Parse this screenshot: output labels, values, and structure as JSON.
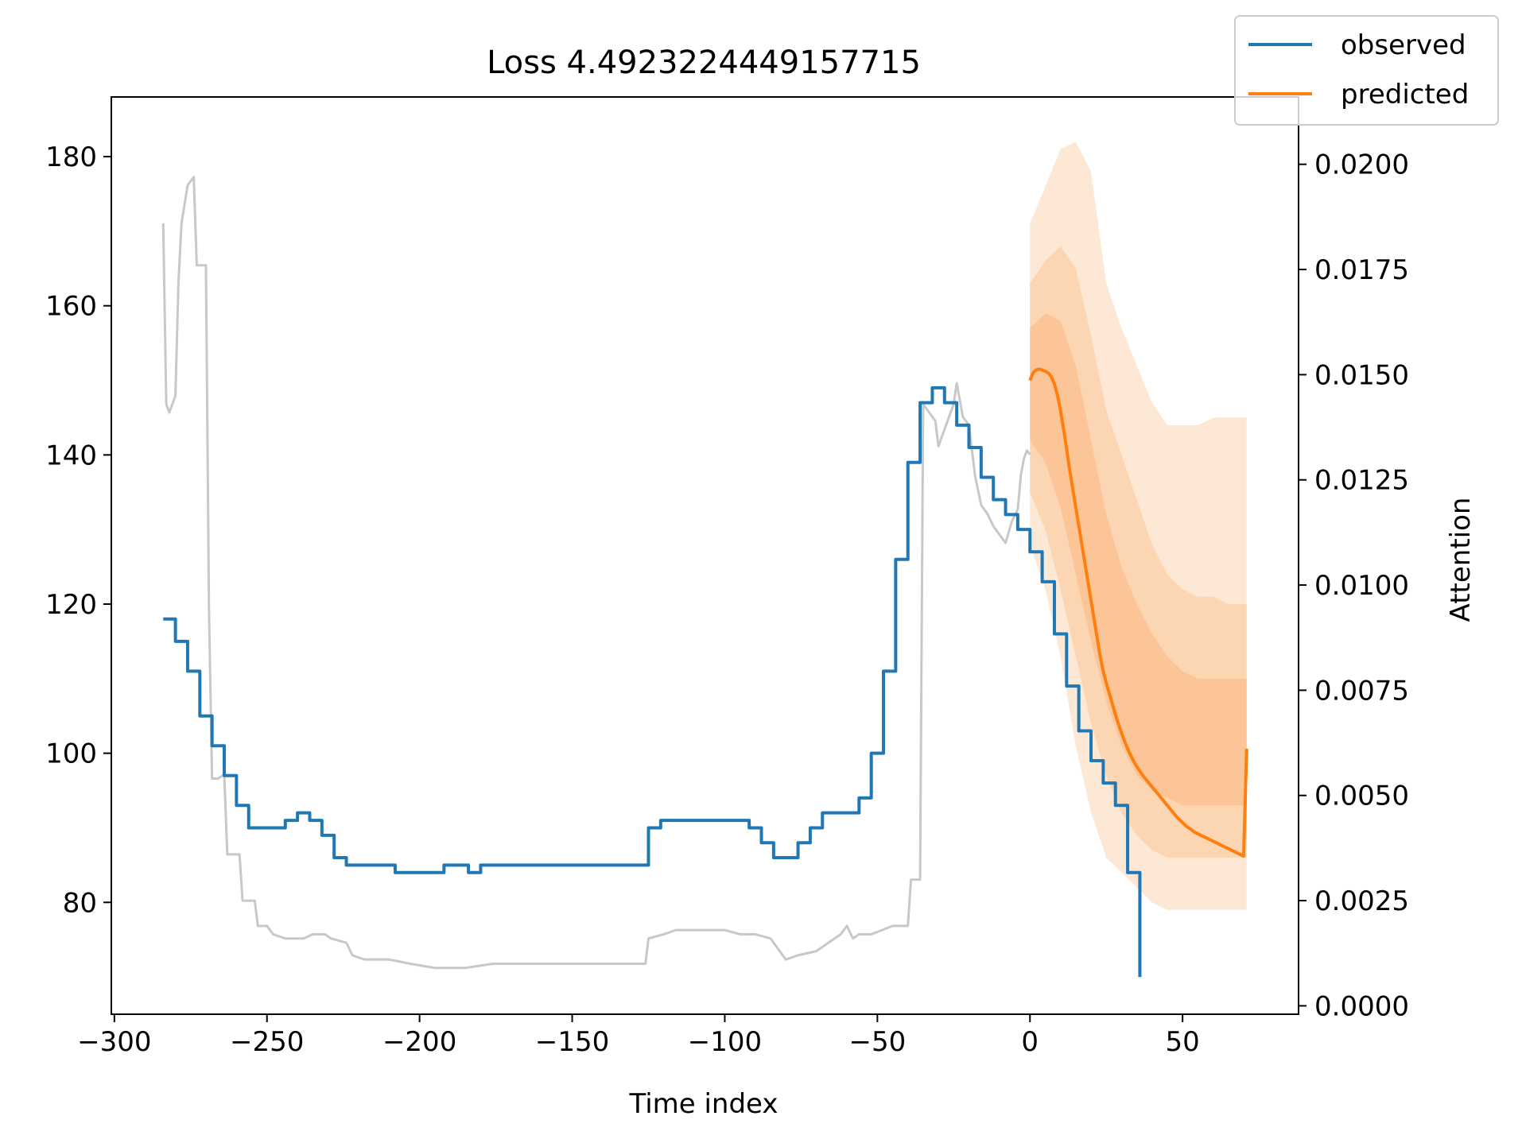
{
  "chart_data": {
    "type": "line",
    "title": "Loss 4.4923224449157715",
    "xlabel": "Time index",
    "ylabel": "",
    "y2label": "Attention",
    "xlim": [
      -301,
      88
    ],
    "ylim": [
      65,
      188
    ],
    "y2lim": [
      -0.0002,
      0.0216
    ],
    "xticks": [
      -300,
      -250,
      -200,
      -150,
      -100,
      -50,
      0,
      50
    ],
    "xtick_labels": [
      "−300",
      "−250",
      "−200",
      "−150",
      "−100",
      "−50",
      "0",
      "50"
    ],
    "yticks": [
      80,
      100,
      120,
      140,
      160,
      180
    ],
    "ytick_labels": [
      "80",
      "100",
      "120",
      "140",
      "160",
      "180"
    ],
    "y2ticks": [
      0,
      0.0025,
      0.005,
      0.0075,
      0.01,
      0.0125,
      0.015,
      0.0175,
      0.02
    ],
    "y2tick_labels": [
      "0.0000",
      "0.0025",
      "0.0050",
      "0.0075",
      "0.0100",
      "0.0125",
      "0.0150",
      "0.0175",
      "0.0200"
    ],
    "legend": {
      "placement": "top-right",
      "entries": [
        "observed",
        "predicted"
      ]
    },
    "colors": {
      "observed": "#1f77b4",
      "predicted": "#ff7f0e",
      "attention": "#c8c8c8",
      "band_outer": "#fde8d6",
      "band_middle": "#fcd6b3",
      "band_inner": "#fbc598"
    },
    "series": [
      {
        "name": "observed",
        "axis": "left",
        "step": true,
        "points": [
          [
            -284,
            118
          ],
          [
            -280,
            118
          ],
          [
            -280,
            115
          ],
          [
            -276,
            115
          ],
          [
            -276,
            111
          ],
          [
            -272,
            111
          ],
          [
            -272,
            105
          ],
          [
            -268,
            105
          ],
          [
            -268,
            101
          ],
          [
            -264,
            101
          ],
          [
            -264,
            97
          ],
          [
            -260,
            97
          ],
          [
            -260,
            93
          ],
          [
            -256,
            93
          ],
          [
            -256,
            90
          ],
          [
            -244,
            90
          ],
          [
            -244,
            91
          ],
          [
            -240,
            91
          ],
          [
            -240,
            92
          ],
          [
            -236,
            92
          ],
          [
            -236,
            91
          ],
          [
            -232,
            91
          ],
          [
            -232,
            89
          ],
          [
            -228,
            89
          ],
          [
            -228,
            86
          ],
          [
            -224,
            86
          ],
          [
            -224,
            85
          ],
          [
            -208,
            85
          ],
          [
            -208,
            84
          ],
          [
            -192,
            84
          ],
          [
            -192,
            85
          ],
          [
            -184,
            85
          ],
          [
            -184,
            84
          ],
          [
            -180,
            84
          ],
          [
            -180,
            85
          ],
          [
            -125,
            85
          ],
          [
            -125,
            90
          ],
          [
            -121,
            90
          ],
          [
            -121,
            91
          ],
          [
            -92,
            91
          ],
          [
            -92,
            90
          ],
          [
            -88,
            90
          ],
          [
            -88,
            88
          ],
          [
            -84,
            88
          ],
          [
            -84,
            86
          ],
          [
            -76,
            86
          ],
          [
            -76,
            88
          ],
          [
            -72,
            88
          ],
          [
            -72,
            90
          ],
          [
            -68,
            90
          ],
          [
            -68,
            92
          ],
          [
            -56,
            92
          ],
          [
            -56,
            94
          ],
          [
            -52,
            94
          ],
          [
            -52,
            100
          ],
          [
            -48,
            100
          ],
          [
            -48,
            111
          ],
          [
            -44,
            111
          ],
          [
            -44,
            126
          ],
          [
            -40,
            126
          ],
          [
            -40,
            139
          ],
          [
            -36,
            139
          ],
          [
            -36,
            147
          ],
          [
            -32,
            147
          ],
          [
            -32,
            149
          ],
          [
            -28,
            149
          ],
          [
            -28,
            147
          ],
          [
            -24,
            147
          ],
          [
            -24,
            144
          ],
          [
            -20,
            144
          ],
          [
            -20,
            141
          ],
          [
            -16,
            141
          ],
          [
            -16,
            137
          ],
          [
            -12,
            137
          ],
          [
            -12,
            134
          ],
          [
            -8,
            134
          ],
          [
            -8,
            132
          ],
          [
            -4,
            132
          ],
          [
            -4,
            130
          ],
          [
            0,
            130
          ],
          [
            0,
            127
          ],
          [
            4,
            127
          ],
          [
            4,
            123
          ],
          [
            8,
            123
          ],
          [
            8,
            116
          ],
          [
            12,
            116
          ],
          [
            12,
            109
          ],
          [
            16,
            109
          ],
          [
            16,
            103
          ],
          [
            20,
            103
          ],
          [
            20,
            99
          ],
          [
            24,
            99
          ],
          [
            24,
            96
          ],
          [
            28,
            96
          ],
          [
            28,
            93
          ],
          [
            32,
            93
          ],
          [
            32,
            84
          ],
          [
            36,
            84
          ],
          [
            36,
            70
          ]
        ]
      },
      {
        "name": "predicted",
        "axis": "left",
        "x": [
          0,
          1,
          2,
          3,
          4,
          5,
          6,
          7,
          8,
          9,
          10,
          11,
          12,
          13,
          14,
          15,
          16,
          17,
          18,
          19,
          20,
          21,
          22,
          23,
          24,
          25,
          26,
          27,
          28,
          29,
          30,
          31,
          32,
          33,
          34,
          35,
          36,
          37,
          38,
          39,
          40,
          41,
          42,
          43,
          44,
          45,
          46,
          47,
          48,
          49,
          50,
          51,
          52,
          53,
          54,
          55,
          56,
          57,
          58,
          59,
          60,
          61,
          62,
          63,
          64,
          65,
          66,
          67,
          68,
          69,
          70,
          71
        ],
        "values": [
          150.0,
          151.0,
          151.4,
          151.5,
          151.4,
          151.2,
          151.0,
          150.5,
          149.5,
          148.0,
          146.0,
          143.5,
          140.8,
          138.0,
          135.5,
          133.0,
          130.5,
          128.0,
          125.5,
          123.0,
          120.5,
          118.0,
          115.5,
          113.0,
          111.0,
          109.4,
          108.0,
          106.6,
          105.2,
          103.9,
          102.7,
          101.6,
          100.6,
          99.7,
          98.9,
          98.2,
          97.6,
          97.0,
          96.5,
          96.0,
          95.5,
          95.0,
          94.5,
          94.0,
          93.5,
          93.0,
          92.5,
          92.0,
          91.5,
          91.1,
          90.7,
          90.3,
          90.0,
          89.7,
          89.4,
          89.2,
          89.0,
          88.8,
          88.6,
          88.4,
          88.2,
          88.0,
          87.8,
          87.6,
          87.4,
          87.2,
          87.0,
          86.8,
          86.6,
          86.4,
          86.2,
          100.6
        ]
      },
      {
        "name": "attention",
        "axis": "right",
        "points": [
          [
            -284,
            0.0186
          ],
          [
            -283,
            0.0143
          ],
          [
            -282,
            0.0141
          ],
          [
            -280,
            0.0145
          ],
          [
            -279,
            0.0172
          ],
          [
            -278,
            0.0186
          ],
          [
            -276,
            0.0195
          ],
          [
            -274,
            0.0197
          ],
          [
            -273,
            0.0176
          ],
          [
            -270,
            0.0176
          ],
          [
            -269,
            0.0094
          ],
          [
            -268,
            0.0054
          ],
          [
            -266,
            0.0054
          ],
          [
            -264,
            0.0055
          ],
          [
            -263,
            0.0036
          ],
          [
            -259,
            0.0036
          ],
          [
            -258,
            0.0025
          ],
          [
            -254,
            0.0025
          ],
          [
            -253,
            0.0019
          ],
          [
            -250,
            0.0019
          ],
          [
            -248,
            0.0017
          ],
          [
            -244,
            0.0016
          ],
          [
            -238,
            0.0016
          ],
          [
            -235,
            0.0017
          ],
          [
            -231,
            0.0017
          ],
          [
            -229,
            0.0016
          ],
          [
            -224,
            0.0015
          ],
          [
            -222,
            0.0012
          ],
          [
            -218,
            0.0011
          ],
          [
            -210,
            0.0011
          ],
          [
            -203,
            0.001
          ],
          [
            -195,
            0.0009
          ],
          [
            -185,
            0.0009
          ],
          [
            -176,
            0.001
          ],
          [
            -172,
            0.001
          ],
          [
            -168,
            0.001
          ],
          [
            -160,
            0.001
          ],
          [
            -150,
            0.001
          ],
          [
            -140,
            0.001
          ],
          [
            -126,
            0.001
          ],
          [
            -125,
            0.0016
          ],
          [
            -120,
            0.0017
          ],
          [
            -116,
            0.0018
          ],
          [
            -110,
            0.0018
          ],
          [
            -100,
            0.0018
          ],
          [
            -95,
            0.0017
          ],
          [
            -90,
            0.0017
          ],
          [
            -85,
            0.0016
          ],
          [
            -80,
            0.0011
          ],
          [
            -76,
            0.0012
          ],
          [
            -70,
            0.0013
          ],
          [
            -66,
            0.0015
          ],
          [
            -62,
            0.0017
          ],
          [
            -60,
            0.0019
          ],
          [
            -58,
            0.0016
          ],
          [
            -56,
            0.0017
          ],
          [
            -52,
            0.0017
          ],
          [
            -45,
            0.0019
          ],
          [
            -40,
            0.0019
          ],
          [
            -39,
            0.003
          ],
          [
            -36,
            0.003
          ],
          [
            -35,
            0.0143
          ],
          [
            -33,
            0.0141
          ],
          [
            -31,
            0.0139
          ],
          [
            -30,
            0.0133
          ],
          [
            -29,
            0.0135
          ],
          [
            -27,
            0.0139
          ],
          [
            -25,
            0.0143
          ],
          [
            -24,
            0.0148
          ],
          [
            -22,
            0.014
          ],
          [
            -20,
            0.0138
          ],
          [
            -18,
            0.0126
          ],
          [
            -16,
            0.0119
          ],
          [
            -14,
            0.0117
          ],
          [
            -12,
            0.0114
          ],
          [
            -10,
            0.0112
          ],
          [
            -8,
            0.011
          ],
          [
            -6,
            0.0115
          ],
          [
            -4,
            0.0118
          ],
          [
            -3,
            0.0126
          ],
          [
            -2,
            0.013
          ],
          [
            -1,
            0.0132
          ],
          [
            0,
            0.0131
          ]
        ]
      }
    ],
    "bands": [
      {
        "level": "outer",
        "x": [
          0,
          5,
          10,
          15,
          20,
          25,
          30,
          35,
          40,
          45,
          50,
          55,
          60,
          65,
          71
        ],
        "upper": [
          171,
          176,
          181,
          182,
          178,
          163,
          157,
          152,
          147,
          144,
          144,
          144,
          145,
          145,
          145
        ],
        "lower": [
          128,
          122,
          113,
          101,
          92,
          86,
          84,
          82,
          80,
          79,
          79,
          79,
          79,
          79,
          79
        ]
      },
      {
        "level": "middle",
        "x": [
          0,
          5,
          10,
          15,
          20,
          25,
          30,
          35,
          40,
          45,
          50,
          55,
          60,
          65,
          71
        ],
        "upper": [
          163,
          166,
          168,
          165,
          156,
          146,
          140,
          134,
          128,
          124,
          122,
          121,
          121,
          120,
          120
        ],
        "lower": [
          135,
          130,
          122,
          113,
          104,
          97,
          92,
          89,
          87,
          86,
          86,
          86,
          86,
          86,
          86
        ]
      },
      {
        "level": "inner",
        "x": [
          0,
          5,
          10,
          15,
          20,
          25,
          30,
          35,
          40,
          45,
          50,
          55,
          60,
          65,
          71
        ],
        "upper": [
          157,
          159,
          158,
          152,
          142,
          132,
          125,
          120,
          116,
          113,
          111,
          110,
          110,
          110,
          110
        ],
        "lower": [
          142,
          139,
          133,
          124,
          115,
          107,
          101,
          97,
          95,
          94,
          93,
          93,
          93,
          93,
          93
        ]
      }
    ]
  }
}
